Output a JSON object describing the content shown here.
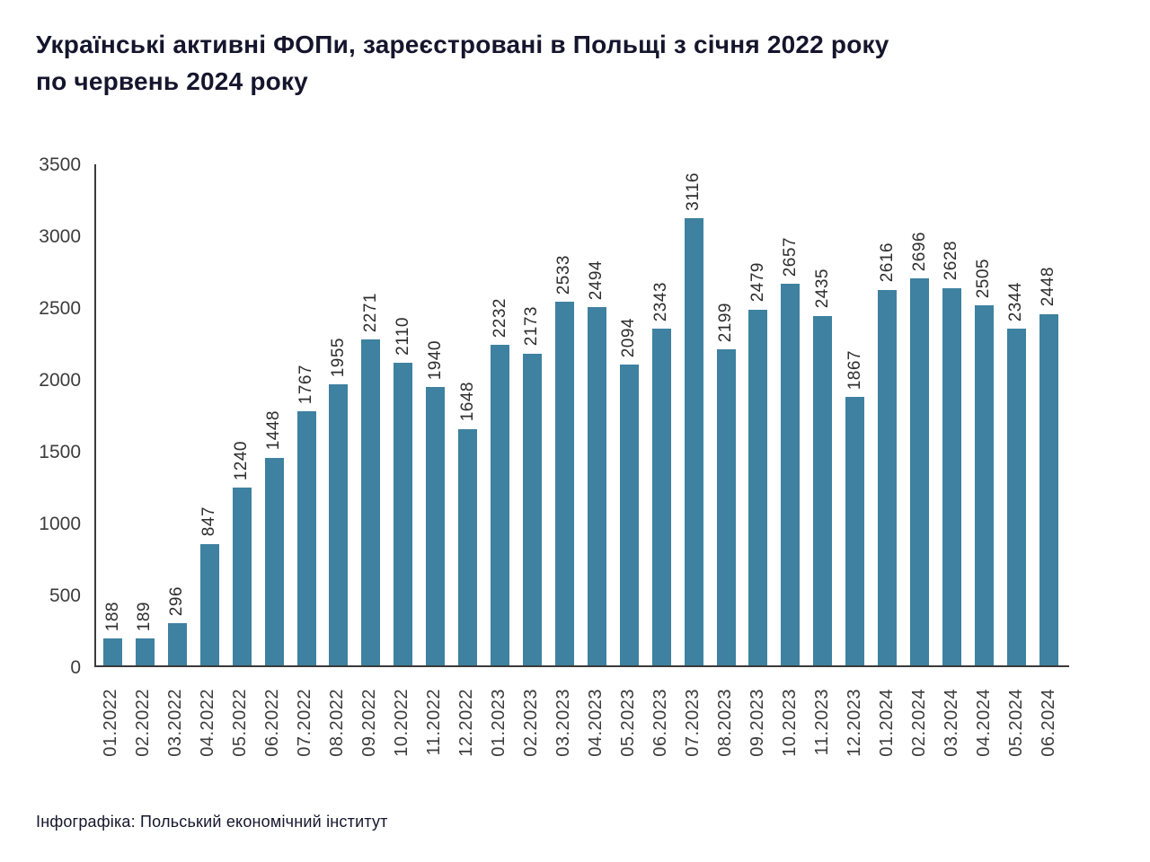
{
  "title_lines": [
    "Українські активні ФОПи, зареєстровані в Польщі з січня 2022 року",
    "по червень 2024 року"
  ],
  "footer": "Інфографіка: Польський економічний інститут",
  "chart_data": {
    "type": "bar",
    "title": "Українські активні ФОПи, зареєстровані в Польщі з січня 2022 року по червень 2024 року",
    "xlabel": "",
    "ylabel": "",
    "ylim": [
      0,
      3500
    ],
    "yticks": [
      0,
      500,
      1000,
      1500,
      2000,
      2500,
      3000,
      3500
    ],
    "grid": false,
    "legend": "none",
    "bar_color": "#3e81a0",
    "categories": [
      "01.2022",
      "02.2022",
      "03.2022",
      "04.2022",
      "05.2022",
      "06.2022",
      "07.2022",
      "08.2022",
      "09.2022",
      "10.2022",
      "11.2022",
      "12.2022",
      "01.2023",
      "02.2023",
      "03.2023",
      "04.2023",
      "05.2023",
      "06.2023",
      "07.2023",
      "08.2023",
      "09.2023",
      "10.2023",
      "11.2023",
      "12.2023",
      "01.2024",
      "02.2024",
      "03.2024",
      "04.2024",
      "05.2024",
      "06.2024"
    ],
    "values": [
      188,
      189,
      296,
      847,
      1240,
      1448,
      1767,
      1955,
      2271,
      2110,
      1940,
      1648,
      2232,
      2173,
      2533,
      2494,
      2094,
      2343,
      3116,
      2199,
      2479,
      2657,
      2435,
      1867,
      2616,
      2696,
      2628,
      2505,
      2344,
      2448
    ]
  }
}
